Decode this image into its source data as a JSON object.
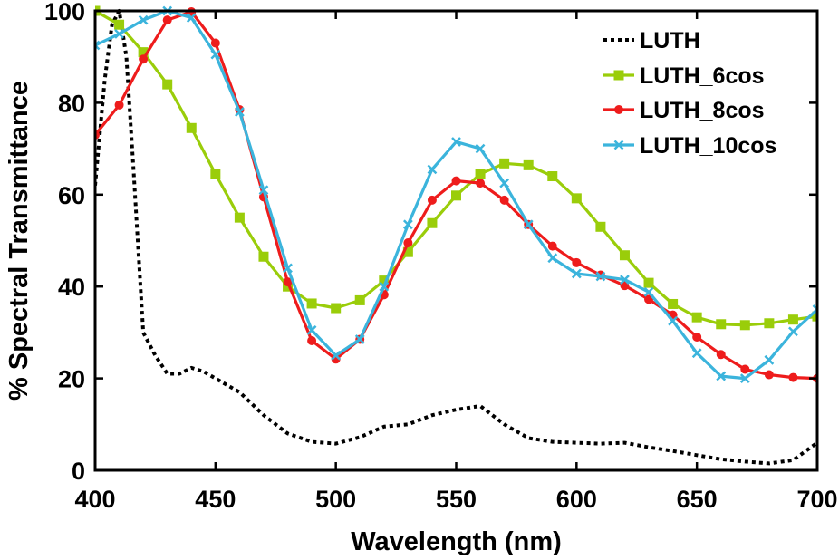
{
  "chart_data": {
    "type": "line",
    "title": "",
    "xlabel": "Wavelength (nm)",
    "ylabel": "% Spectral Transmittance",
    "xlim": [
      400,
      700
    ],
    "ylim": [
      0,
      100
    ],
    "xticks": [
      400,
      450,
      500,
      550,
      600,
      650,
      700
    ],
    "yticks": [
      0,
      20,
      40,
      60,
      80,
      100
    ],
    "xtick_labels": [
      "400",
      "450",
      "500",
      "550",
      "600",
      "650",
      "700"
    ],
    "ytick_labels": [
      "0",
      "20",
      "40",
      "60",
      "80",
      "100"
    ],
    "grid": false,
    "legend_position": "top-right",
    "series": [
      {
        "name": "LUTH",
        "color": "#000000",
        "style": "dotted",
        "marker": "none",
        "x": [
          400,
          404,
          407,
          410,
          413,
          416,
          420,
          425,
          430,
          435,
          440,
          445,
          450,
          460,
          470,
          480,
          490,
          500,
          510,
          520,
          530,
          540,
          550,
          560,
          570,
          580,
          590,
          600,
          610,
          620,
          630,
          640,
          650,
          660,
          670,
          680,
          690,
          700
        ],
        "y": [
          62,
          85,
          97,
          100,
          90,
          65,
          30,
          25,
          21,
          21,
          22.3,
          21.5,
          20,
          17,
          12,
          8,
          6.2,
          5.8,
          7.2,
          9.5,
          10,
          12,
          13.2,
          14,
          10,
          7,
          6.2,
          6,
          5.8,
          6,
          5,
          4.2,
          3.3,
          2.4,
          1.9,
          1.5,
          2.2,
          6
        ]
      },
      {
        "name": "LUTH_6cos",
        "color": "#9acd0a",
        "style": "solid",
        "marker": "square",
        "x": [
          400,
          410,
          420,
          430,
          440,
          450,
          460,
          470,
          480,
          490,
          500,
          510,
          520,
          530,
          540,
          550,
          560,
          570,
          580,
          590,
          600,
          610,
          620,
          630,
          640,
          650,
          660,
          670,
          680,
          690,
          700
        ],
        "y": [
          100,
          97,
          91,
          84,
          74.5,
          64.5,
          55,
          46.5,
          40,
          36.3,
          35.3,
          37,
          41.3,
          47.5,
          53.8,
          59.8,
          64.5,
          66.8,
          66.4,
          64,
          59.2,
          53,
          46.8,
          40.8,
          36.2,
          33.3,
          31.8,
          31.6,
          32,
          32.8,
          33.5
        ]
      },
      {
        "name": "LUTH_8cos",
        "color": "#ee1c1c",
        "style": "solid",
        "marker": "circle",
        "x": [
          400,
          410,
          420,
          430,
          440,
          450,
          460,
          470,
          480,
          490,
          500,
          510,
          520,
          530,
          540,
          550,
          560,
          570,
          580,
          590,
          600,
          610,
          620,
          630,
          640,
          650,
          660,
          670,
          680,
          690,
          700
        ],
        "y": [
          73,
          79.5,
          89.5,
          98,
          99.8,
          93,
          78.5,
          59.5,
          41,
          28.2,
          24.2,
          28.5,
          38.2,
          49.5,
          58.8,
          63,
          62.5,
          58.8,
          53.5,
          48.8,
          45.2,
          42.5,
          40.2,
          37.2,
          33.8,
          29,
          25.2,
          22,
          20.8,
          20.2,
          20
        ]
      },
      {
        "name": "LUTH_10cos",
        "color": "#3bb4dc",
        "style": "solid",
        "marker": "x",
        "x": [
          400,
          410,
          420,
          430,
          440,
          450,
          460,
          470,
          480,
          490,
          500,
          510,
          520,
          530,
          540,
          550,
          560,
          570,
          580,
          590,
          600,
          610,
          620,
          630,
          640,
          650,
          660,
          670,
          680,
          690,
          700
        ],
        "y": [
          92.5,
          95,
          98,
          100,
          98.5,
          90.5,
          78,
          61,
          44,
          30.5,
          25,
          28.5,
          40,
          53.5,
          65.5,
          71.5,
          70,
          62.5,
          53.5,
          46.2,
          42.8,
          42.2,
          41.5,
          38.8,
          32.5,
          25.5,
          20.5,
          20,
          24,
          30.2,
          35
        ]
      }
    ]
  }
}
